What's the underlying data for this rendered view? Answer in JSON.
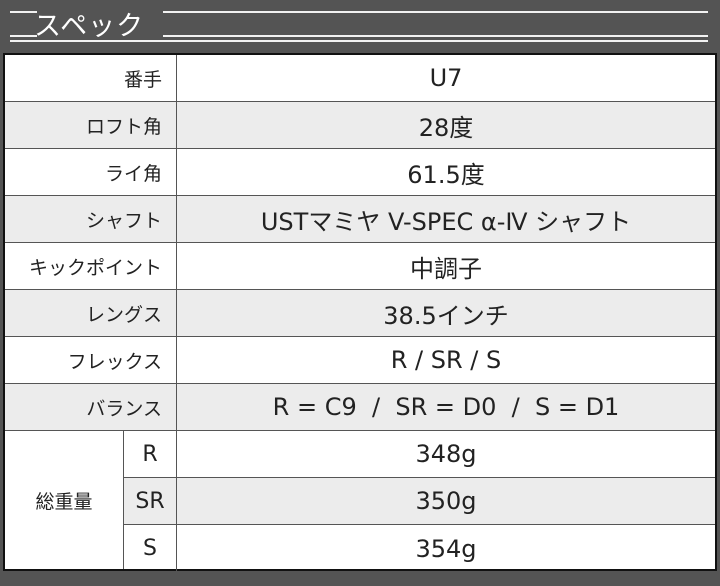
{
  "header": {
    "title": "スペック"
  },
  "specs": [
    {
      "label": "番手",
      "value": "U7"
    },
    {
      "label": "ロフト角",
      "value": "28度"
    },
    {
      "label": "ライ角",
      "value": "61.5度"
    },
    {
      "label": "シャフト",
      "value": "USTマミヤ V-SPEC α-Ⅳ シャフト"
    },
    {
      "label": "キックポイント",
      "value": "中調子"
    },
    {
      "label": "レングス",
      "value": "38.5インチ"
    },
    {
      "label": "フレックス",
      "value": "R / SR / S"
    },
    {
      "label": "バランス",
      "value": "R = C9  /  SR = D0  /  S = D1"
    }
  ],
  "weight": {
    "label": "総重量",
    "rows": [
      {
        "flex": "R",
        "value": "348g"
      },
      {
        "flex": "SR",
        "value": "350g"
      },
      {
        "flex": "S",
        "value": "354g"
      }
    ]
  }
}
